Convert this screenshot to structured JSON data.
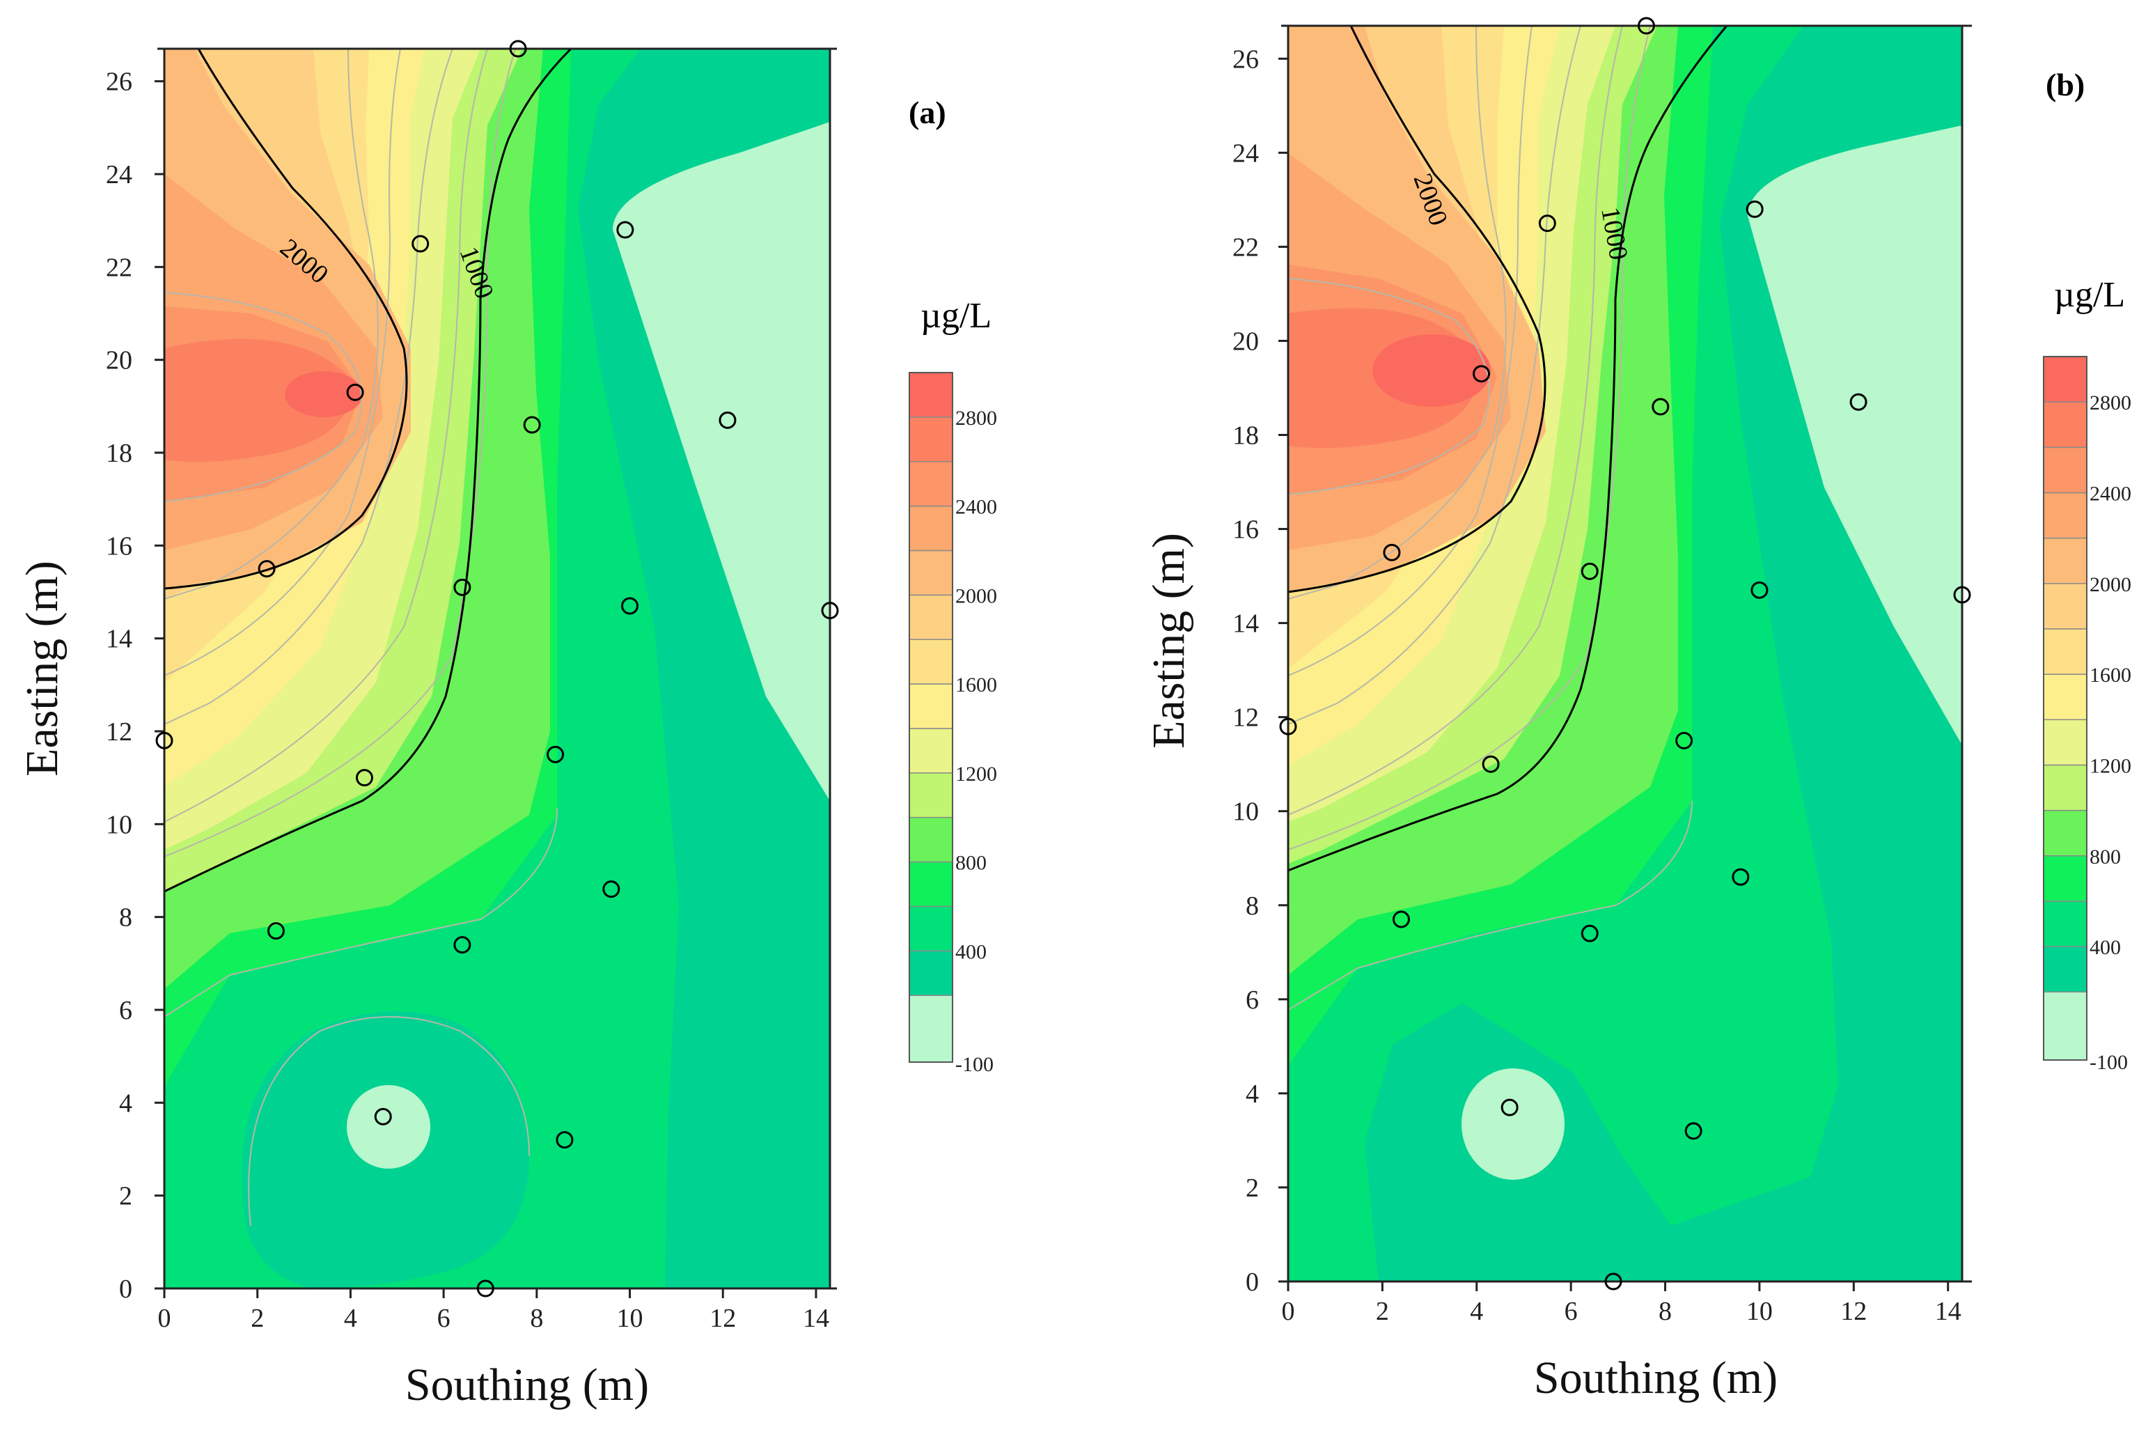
{
  "figure": {
    "colors": {
      "lv_m100_200": "#b9f7cd",
      "lv_200_400": "#00d292",
      "lv_400_600": "#00e17a",
      "lv_600_800": "#10f05a",
      "lv_800_1000": "#6af25a",
      "lv_1000_1200": "#bff570",
      "lv_1200_1400": "#e9f48a",
      "lv_1400_1600": "#fcef8c",
      "lv_1600_1800": "#fde087",
      "lv_1800_2000": "#fdd084",
      "lv_2000_2200": "#fdbb7a",
      "lv_2200_2400": "#fca86f",
      "lv_2400_2600": "#fc9567",
      "lv_2600_2800": "#fc8161",
      "lv_2800_3000": "#fb6a5e"
    }
  },
  "chart_data": [
    {
      "type": "contour",
      "panel_label": "(a)",
      "title": "",
      "xlabel": "Southing (m)",
      "ylabel": "Easting (m)",
      "xlim": [
        0,
        14.3
      ],
      "ylim": [
        0,
        26.7
      ],
      "x_ticks": [
        0,
        2,
        4,
        6,
        8,
        10,
        12,
        14
      ],
      "y_ticks": [
        0,
        2,
        4,
        6,
        8,
        10,
        12,
        14,
        16,
        18,
        20,
        22,
        24,
        26
      ],
      "contour_step": 200,
      "labeled_contours": [
        {
          "level": 1000,
          "text": "1000"
        },
        {
          "level": 2000,
          "text": "2000"
        }
      ],
      "colorbar": {
        "unit": "µg/L",
        "range": [
          -100,
          3000
        ],
        "levels": [
          -100,
          200,
          400,
          600,
          800,
          1000,
          1200,
          1400,
          1600,
          1800,
          2000,
          2200,
          2400,
          2600,
          2800,
          3000
        ],
        "tick_labels": [
          "2800",
          "2400",
          "2000",
          "1600",
          "1200",
          "800",
          "400",
          "-100"
        ],
        "tick_values": [
          2800,
          2400,
          2000,
          1600,
          1200,
          800,
          400,
          -100
        ]
      },
      "sample_points": [
        {
          "x": 7.6,
          "y": 26.7
        },
        {
          "x": 5.5,
          "y": 22.5
        },
        {
          "x": 9.9,
          "y": 22.8
        },
        {
          "x": 4.1,
          "y": 19.3
        },
        {
          "x": 7.9,
          "y": 18.6
        },
        {
          "x": 12.1,
          "y": 18.7
        },
        {
          "x": 2.2,
          "y": 15.5
        },
        {
          "x": 6.4,
          "y": 15.1
        },
        {
          "x": 10.0,
          "y": 14.7
        },
        {
          "x": 14.3,
          "y": 14.6
        },
        {
          "x": 0.0,
          "y": 11.8
        },
        {
          "x": 4.3,
          "y": 11.0
        },
        {
          "x": 8.4,
          "y": 11.5
        },
        {
          "x": 9.6,
          "y": 8.6
        },
        {
          "x": 2.4,
          "y": 7.7
        },
        {
          "x": 6.4,
          "y": 7.4
        },
        {
          "x": 4.7,
          "y": 3.7
        },
        {
          "x": 8.6,
          "y": 3.2
        },
        {
          "x": 6.9,
          "y": 0.0
        }
      ]
    },
    {
      "type": "contour",
      "panel_label": "(b)",
      "title": "",
      "xlabel": "Southing (m)",
      "ylabel": "Easting (m)",
      "xlim": [
        0,
        14.3
      ],
      "ylim": [
        0,
        26.7
      ],
      "x_ticks": [
        0,
        2,
        4,
        6,
        8,
        10,
        12,
        14
      ],
      "y_ticks": [
        0,
        2,
        4,
        6,
        8,
        10,
        12,
        14,
        16,
        18,
        20,
        22,
        24,
        26
      ],
      "contour_step": 200,
      "labeled_contours": [
        {
          "level": 1000,
          "text": "1000"
        },
        {
          "level": 2000,
          "text": "2000"
        }
      ],
      "colorbar": {
        "unit": "µg/L",
        "range": [
          -100,
          3000
        ],
        "levels": [
          -100,
          200,
          400,
          600,
          800,
          1000,
          1200,
          1400,
          1600,
          1800,
          2000,
          2200,
          2400,
          2600,
          2800,
          3000
        ],
        "tick_labels": [
          "2800",
          "2400",
          "2000",
          "1600",
          "1200",
          "800",
          "400",
          "-100"
        ],
        "tick_values": [
          2800,
          2400,
          2000,
          1600,
          1200,
          800,
          400,
          -100
        ]
      },
      "sample_points": [
        {
          "x": 7.6,
          "y": 26.7
        },
        {
          "x": 5.5,
          "y": 22.5
        },
        {
          "x": 9.9,
          "y": 22.8
        },
        {
          "x": 4.1,
          "y": 19.3
        },
        {
          "x": 7.9,
          "y": 18.6
        },
        {
          "x": 12.1,
          "y": 18.7
        },
        {
          "x": 2.2,
          "y": 15.5
        },
        {
          "x": 6.4,
          "y": 15.1
        },
        {
          "x": 10.0,
          "y": 14.7
        },
        {
          "x": 14.3,
          "y": 14.6
        },
        {
          "x": 0.0,
          "y": 11.8
        },
        {
          "x": 4.3,
          "y": 11.0
        },
        {
          "x": 8.4,
          "y": 11.5
        },
        {
          "x": 9.6,
          "y": 8.6
        },
        {
          "x": 2.4,
          "y": 7.7
        },
        {
          "x": 6.4,
          "y": 7.4
        },
        {
          "x": 4.7,
          "y": 3.7
        },
        {
          "x": 8.6,
          "y": 3.2
        },
        {
          "x": 6.9,
          "y": 0.0
        }
      ]
    }
  ]
}
